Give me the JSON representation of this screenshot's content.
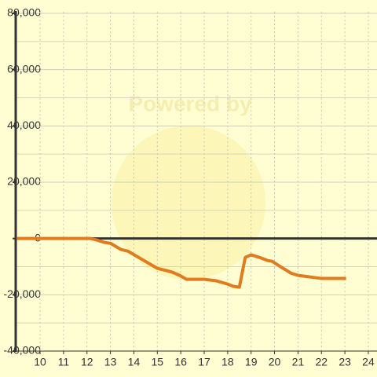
{
  "chart_data": {
    "type": "line",
    "watermark": "Powered by",
    "x": [
      9,
      12.15,
      12.4,
      12.75,
      13,
      13.45,
      13.75,
      14.2,
      14.65,
      15,
      15.4,
      15.65,
      15.95,
      16.25,
      17,
      17.5,
      18,
      18.25,
      18.5,
      18.75,
      19,
      19.35,
      19.7,
      19.9,
      20.25,
      20.7,
      21,
      21.45,
      22,
      23.05
    ],
    "series": [
      {
        "color": "#e07b1f",
        "values": [
          0,
          0,
          -500,
          -1400,
          -1700,
          -3900,
          -4500,
          -6700,
          -8900,
          -10600,
          -11400,
          -12000,
          -13100,
          -14500,
          -14500,
          -15000,
          -16200,
          -17000,
          -17300,
          -6700,
          -5800,
          -6700,
          -7800,
          -8100,
          -10000,
          -12300,
          -13100,
          -13600,
          -14200,
          -14200
        ]
      }
    ],
    "xlim": [
      8.96,
      24.37
    ],
    "xticks": [
      10,
      11,
      12,
      13,
      14,
      15,
      16,
      17,
      18,
      19,
      20,
      21,
      22,
      23,
      24
    ],
    "ylim": [
      -40000,
      80000
    ],
    "yticks": [
      {
        "value": -40000,
        "label": "-40,000"
      },
      {
        "value": -20000,
        "label": "-20,000"
      },
      0,
      {
        "value": 20000,
        "label": "20,000"
      },
      {
        "value": 40000,
        "label": "40,000"
      },
      {
        "value": 60000,
        "label": "60,000"
      },
      {
        "value": 80000,
        "label": "80,000"
      }
    ],
    "grid": true
  }
}
